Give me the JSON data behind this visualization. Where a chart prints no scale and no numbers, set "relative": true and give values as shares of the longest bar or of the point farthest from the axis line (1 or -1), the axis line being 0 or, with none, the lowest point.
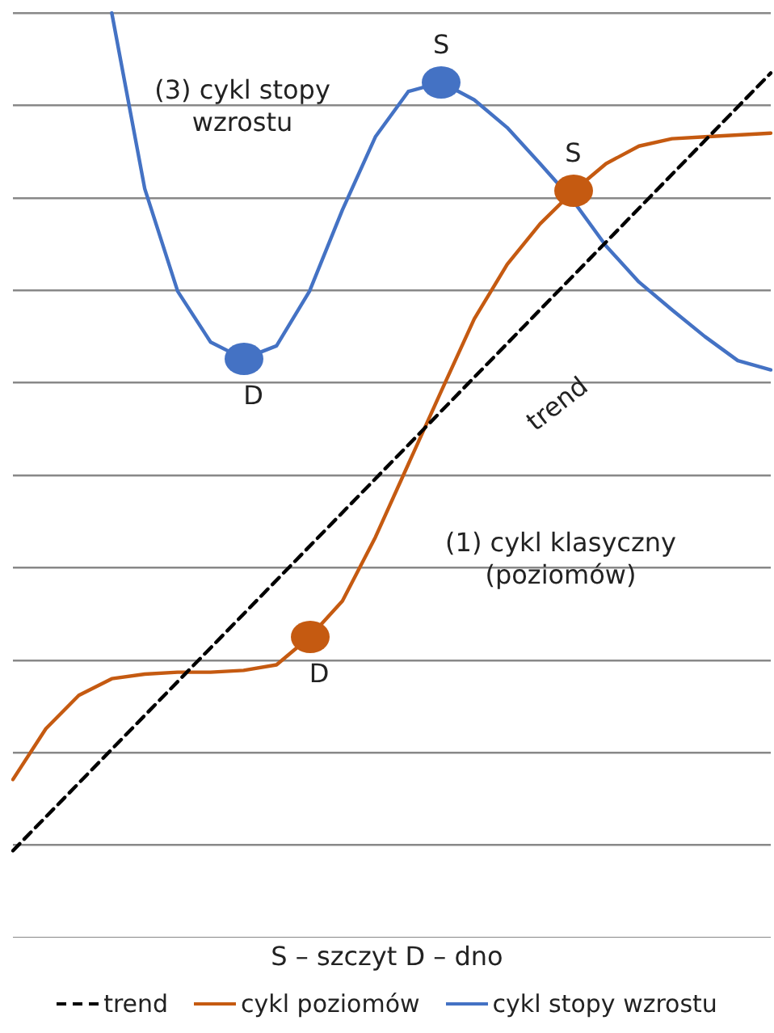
{
  "chart_data": {
    "type": "line",
    "relative": true,
    "grid": "y",
    "legend": "bottom",
    "marker": "none",
    "categories": [
      null,
      null,
      null,
      null,
      null,
      null,
      null,
      null,
      null,
      null,
      null,
      null,
      null,
      null,
      null,
      null,
      null,
      null,
      null,
      null,
      null,
      null,
      null,
      null
    ],
    "series": [
      {
        "name": "trend",
        "color": "#000000",
        "line_style": "dashed",
        "values": [
          0.094,
          null,
          null,
          null,
          null,
          null,
          null,
          null,
          null,
          null,
          null,
          null,
          null,
          null,
          null,
          null,
          null,
          null,
          null,
          null,
          null,
          null,
          null,
          0.935
        ]
      },
      {
        "name": "cykl poziomów",
        "color": "#c55a11",
        "values": [
          0.171,
          0.226,
          0.262,
          0.28,
          0.285,
          0.287,
          0.287,
          0.289,
          0.295,
          0.325,
          0.364,
          0.433,
          0.512,
          0.591,
          0.669,
          0.728,
          0.772,
          0.807,
          0.837,
          0.856,
          0.864,
          0.866,
          0.868,
          0.87
        ]
      },
      {
        "name": "cykl stopy wzrostu",
        "color": "#4472c4",
        "values": [
          null,
          null,
          null,
          1.0,
          0.81,
          0.699,
          0.644,
          0.626,
          0.64,
          0.699,
          0.787,
          0.866,
          0.915,
          0.925,
          0.906,
          0.876,
          0.837,
          0.797,
          0.748,
          0.709,
          0.679,
          0.65,
          0.624,
          0.614
        ]
      }
    ],
    "annotations": [
      "(3) cykl stopy wzrostu",
      "trend",
      "(1) cykl klasyczny (poziomów)",
      "S – szczyt   D – dno",
      {
        "text": "D",
        "y": 0.325
      },
      {
        "text": "S",
        "y": 0.807
      },
      {
        "text": "D",
        "y": 0.626
      },
      {
        "text": "S",
        "y": 0.925
      }
    ]
  }
}
